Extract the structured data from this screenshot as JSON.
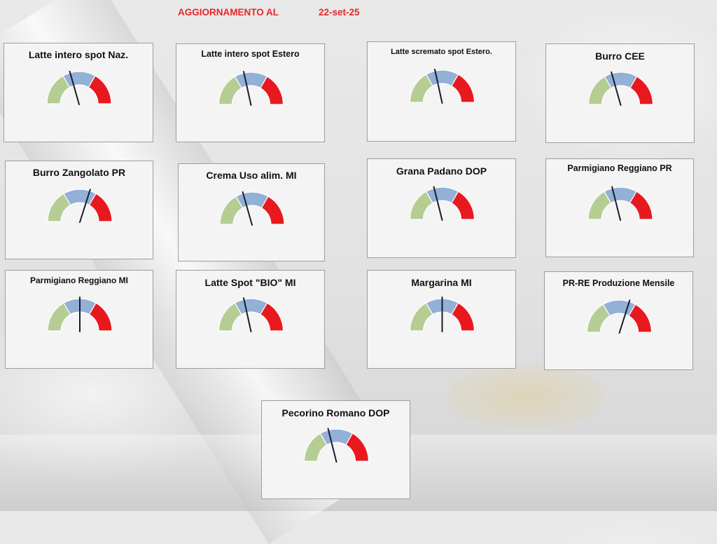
{
  "header": {
    "label": "AGGIORNAMENTO AL",
    "date": "22-set-25"
  },
  "colors": {
    "low": "#b5cd93",
    "mid": "#93b0d6",
    "high": "#e8191e",
    "lower_half": "#ffffff",
    "needle": "#1b1b2b"
  },
  "chart_data": [
    {
      "type": "gauge",
      "title": "Latte intero spot Naz.",
      "segments": [
        "green",
        "blue",
        "red"
      ],
      "needle_value": 0.41
    },
    {
      "type": "gauge",
      "title": "Latte intero spot Estero",
      "segments": [
        "green",
        "blue",
        "red"
      ],
      "needle_value": 0.43
    },
    {
      "type": "gauge",
      "title": "Latte scremato spot Estero.",
      "segments": [
        "green",
        "blue",
        "red"
      ],
      "needle_value": 0.43
    },
    {
      "type": "gauge",
      "title": "Burro CEE",
      "segments": [
        "green",
        "blue",
        "red"
      ],
      "needle_value": 0.41
    },
    {
      "type": "gauge",
      "title": "Burro Zangolato PR",
      "segments": [
        "green",
        "blue",
        "red"
      ],
      "needle_value": 0.6
    },
    {
      "type": "gauge",
      "title": "Crema Uso alim. MI",
      "segments": [
        "green",
        "blue",
        "red"
      ],
      "needle_value": 0.41
    },
    {
      "type": "gauge",
      "title": "Grana Padano DOP",
      "segments": [
        "green",
        "blue",
        "red"
      ],
      "needle_value": 0.42
    },
    {
      "type": "gauge",
      "title": "Parmigiano Reggiano PR",
      "segments": [
        "green",
        "blue",
        "red"
      ],
      "needle_value": 0.42
    },
    {
      "type": "gauge",
      "title": "Parmigiano Reggiano MI",
      "segments": [
        "green",
        "blue",
        "red"
      ],
      "needle_value": 0.5
    },
    {
      "type": "gauge",
      "title": "Latte Spot \"BIO\" MI",
      "segments": [
        "green",
        "blue",
        "red"
      ],
      "needle_value": 0.43
    },
    {
      "type": "gauge",
      "title": "Margarina MI",
      "segments": [
        "green",
        "blue",
        "red"
      ],
      "needle_value": 0.5
    },
    {
      "type": "gauge",
      "title": "PR-RE Produzione Mensile",
      "segments": [
        "green",
        "blue",
        "red"
      ],
      "needle_value": 0.6
    },
    {
      "type": "gauge",
      "title": "Pecorino Romano DOP",
      "segments": [
        "green",
        "blue",
        "red"
      ],
      "needle_value": 0.42
    }
  ]
}
